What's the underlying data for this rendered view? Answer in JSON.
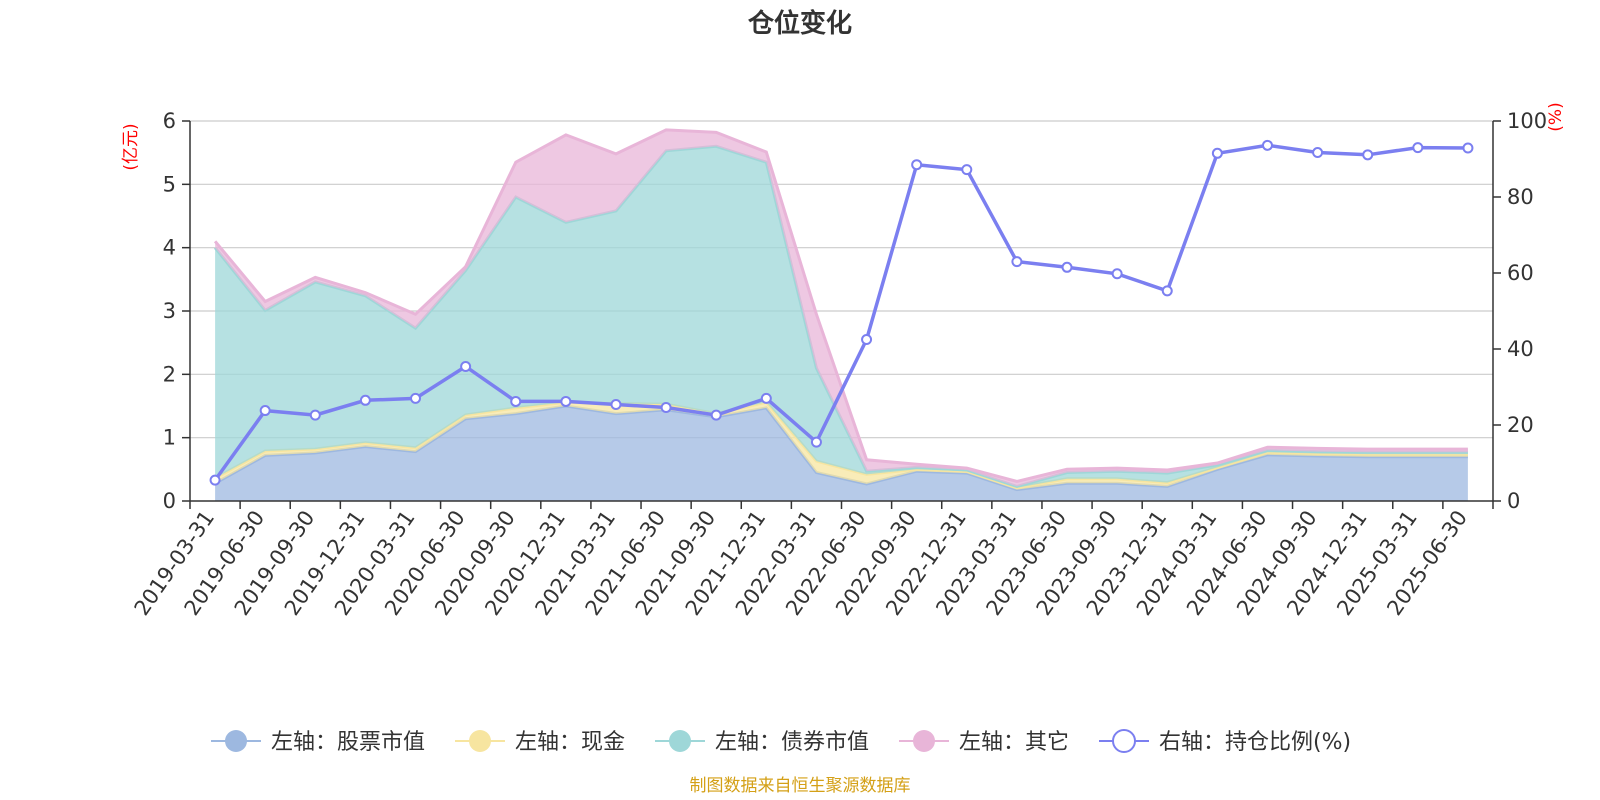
{
  "chart_data": {
    "type": "area",
    "title": "仓位变化",
    "left_axis_unit": "(亿元)",
    "right_axis_unit": "(%)",
    "left_ylim": [
      0,
      6
    ],
    "left_yticks": [
      "0",
      "1",
      "2",
      "3",
      "4",
      "5",
      "6"
    ],
    "right_ylim": [
      0,
      100
    ],
    "right_yticks": [
      "0",
      "20",
      "40",
      "60",
      "80",
      "100"
    ],
    "grid": true,
    "legend_position": "bottom",
    "x": [
      "2019-03-31",
      "2019-06-30",
      "2019-09-30",
      "2019-12-31",
      "2020-03-31",
      "2020-06-30",
      "2020-09-30",
      "2020-12-31",
      "2021-03-31",
      "2021-06-30",
      "2021-09-30",
      "2021-12-31",
      "2022-03-31",
      "2022-06-30",
      "2022-09-30",
      "2022-12-31",
      "2023-03-31",
      "2023-06-30",
      "2023-09-30",
      "2023-12-31",
      "2024-03-31",
      "2024-06-30",
      "2024-09-30",
      "2024-12-31",
      "2025-03-31",
      "2025-06-30"
    ],
    "series": [
      {
        "name": "左轴：股票市值",
        "axis": "left",
        "kind": "stacked-area",
        "color": "#9db8e0",
        "values": [
          0.28,
          0.72,
          0.76,
          0.86,
          0.78,
          1.3,
          1.38,
          1.5,
          1.38,
          1.44,
          1.33,
          1.47,
          0.45,
          0.27,
          0.47,
          0.44,
          0.18,
          0.28,
          0.28,
          0.23,
          0.5,
          0.73,
          0.71,
          0.7,
          0.7,
          0.7
        ]
      },
      {
        "name": "左轴：现金",
        "axis": "left",
        "kind": "stacked-area",
        "color": "#f7e5a0",
        "values": [
          0.08,
          0.07,
          0.06,
          0.06,
          0.06,
          0.06,
          0.09,
          0.06,
          0.16,
          0.09,
          0.05,
          0.09,
          0.18,
          0.15,
          0.03,
          0.03,
          0.03,
          0.07,
          0.07,
          0.06,
          0.03,
          0.04,
          0.04,
          0.04,
          0.04,
          0.04
        ]
      },
      {
        "name": "左轴：债券市值",
        "axis": "left",
        "kind": "stacked-area",
        "color": "#9ed7d8",
        "values": [
          3.64,
          2.22,
          2.64,
          2.32,
          1.89,
          2.28,
          3.33,
          2.84,
          3.04,
          4.0,
          4.22,
          3.79,
          1.47,
          0.05,
          0.03,
          0.02,
          0.02,
          0.1,
          0.12,
          0.15,
          0.04,
          0.03,
          0.03,
          0.03,
          0.03,
          0.03
        ]
      },
      {
        "name": "左轴：其它",
        "axis": "left",
        "kind": "stacked-area",
        "color": "#e8b5d8",
        "values": [
          0.1,
          0.14,
          0.07,
          0.05,
          0.22,
          0.06,
          0.55,
          1.38,
          0.9,
          0.33,
          0.22,
          0.16,
          0.85,
          0.18,
          0.05,
          0.03,
          0.08,
          0.05,
          0.05,
          0.05,
          0.03,
          0.05,
          0.05,
          0.05,
          0.05,
          0.05
        ]
      },
      {
        "name": "右轴：持仓比例(%)",
        "axis": "right",
        "kind": "line",
        "color": "#7b7ff0",
        "values": [
          5.5,
          23.8,
          22.6,
          26.5,
          27.0,
          35.4,
          26.2,
          26.2,
          25.4,
          24.6,
          22.6,
          27.0,
          15.5,
          42.5,
          88.5,
          87.2,
          63.0,
          61.5,
          59.8,
          55.3,
          91.5,
          93.6,
          91.7,
          91.1,
          93.0,
          92.9
        ]
      }
    ]
  },
  "footer": {
    "source_text": "制图数据来自恒生聚源数据库",
    "source_color": "#d4a017"
  },
  "colors": {
    "unit_label": "#ff0000",
    "axis": "#333333",
    "grid": "#cccccc"
  }
}
